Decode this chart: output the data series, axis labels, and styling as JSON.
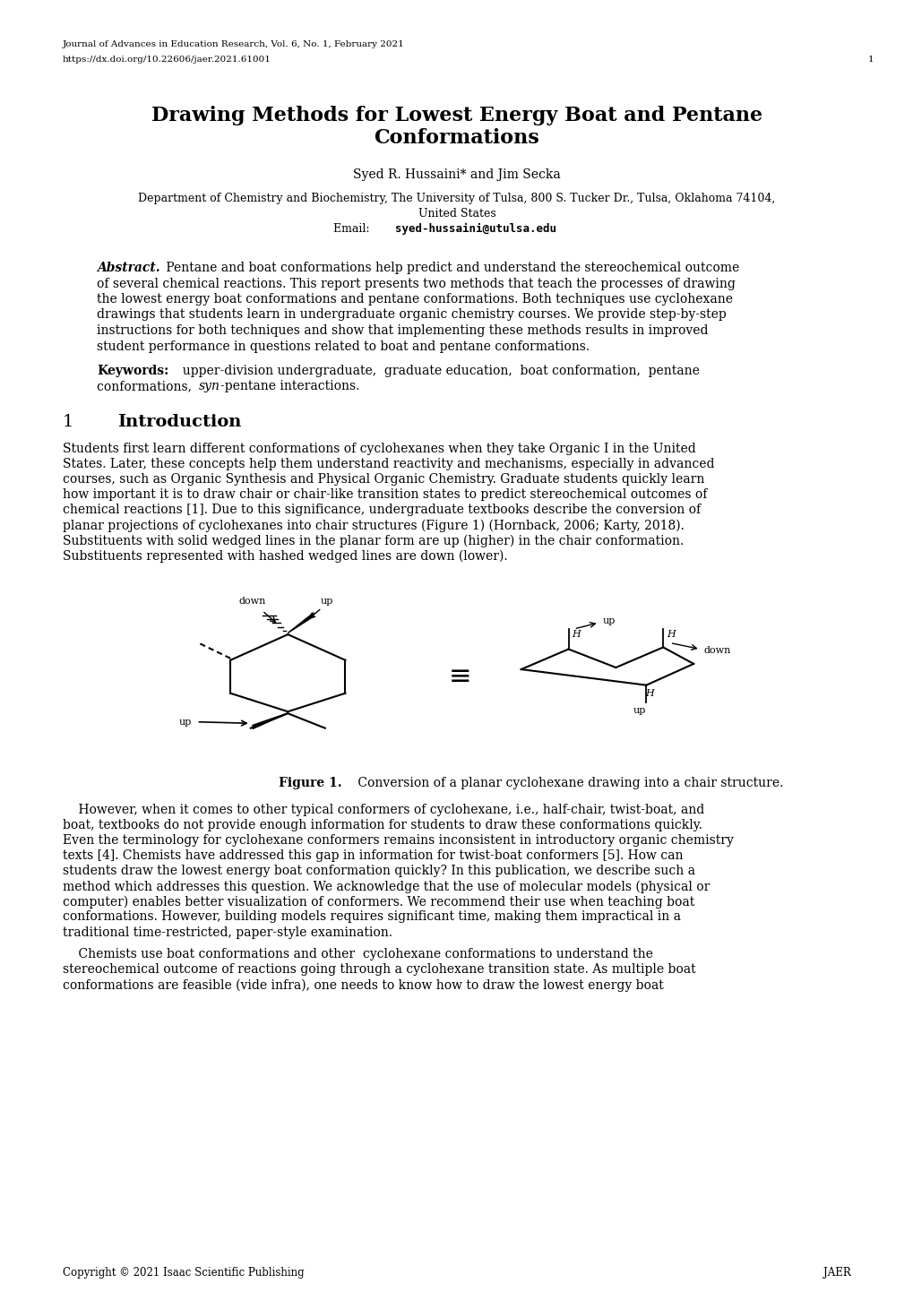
{
  "header_line1": "Journal of Advances in Education Research, Vol. 6, No. 1, February 2021",
  "header_line2": "https://dx.doi.org/10.22606/jaer.2021.61001",
  "header_page": "1",
  "title_line1": "Drawing Methods for Lowest Energy Boat and Pentane",
  "title_line2": "Conformations",
  "authors": "Syed R. Hussaini* and Jim Secka",
  "affil1": "Department of Chemistry and Biochemistry, The University of Tulsa, 800 S. Tucker Dr., Tulsa, Oklahoma 74104,",
  "affil2": "United States",
  "email_label": "Email:  ",
  "email_addr": "syed-hussaini@utulsa.edu",
  "abstract_label": "Abstract.",
  "abstract_lines": [
    " Pentane and boat conformations help predict and understand the stereochemical outcome",
    "of several chemical reactions. This report presents two methods that teach the processes of drawing",
    "the lowest energy boat conformations and pentane conformations. Both techniques use cyclohexane",
    "drawings that students learn in undergraduate organic chemistry courses. We provide step-by-step",
    "instructions for both techniques and show that implementing these methods results in improved",
    "student performance in questions related to boat and pentane conformations."
  ],
  "keywords_label": "Keywords:",
  "keywords_line1": "  upper-division undergraduate,  graduate education,  boat conformation,  pentane",
  "keywords_line2a": "conformations, ",
  "keywords_line2b": "syn",
  "keywords_line2c": "-pentane interactions.",
  "section1_num": "1",
  "section1_title": "Introduction",
  "intro1_lines": [
    "Students first learn different conformations of cyclohexanes when they take Organic I in the United",
    "States. Later, these concepts help them understand reactivity and mechanisms, especially in advanced",
    "courses, such as Organic Synthesis and Physical Organic Chemistry. Graduate students quickly learn",
    "how important it is to draw chair or chair-like transition states to predict stereochemical outcomes of",
    "chemical reactions [1]. Due to this significance, undergraduate textbooks describe the conversion of",
    "planar projections of cyclohexanes into chair structures (Figure 1) (Hornback, 2006; Karty, 2018).",
    "Substituents with solid wedged lines in the planar form are up (higher) in the chair conformation.",
    "Substituents represented with hashed wedged lines are down (lower)."
  ],
  "figure_caption_bold": "Figure 1.",
  "figure_caption_text": " Conversion of a planar cyclohexane drawing into a chair structure.",
  "para2_lines": [
    "    However, when it comes to other typical conformers of cyclohexane, i.e., half-chair, twist-boat, and",
    "boat, textbooks do not provide enough information for students to draw these conformations quickly.",
    "Even the terminology for cyclohexane conformers remains inconsistent in introductory organic chemistry",
    "texts [4]. Chemists have addressed this gap in information for twist-boat conformers [5]. How can",
    "students draw the lowest energy boat conformation quickly? In this publication, we describe such a",
    "method which addresses this question. We acknowledge that the use of molecular models (physical or",
    "computer) enables better visualization of conformers. We recommend their use when teaching boat",
    "conformations. However, building models requires significant time, making them impractical in a",
    "traditional time-restricted, paper-style examination."
  ],
  "para3_lines": [
    "    Chemists use boat conformations and other  cyclohexane conformations to understand the",
    "stereochemical outcome of reactions going through a cyclohexane transition state. As multiple boat",
    "conformations are feasible (vide infra), one needs to know how to draw the lowest energy boat"
  ],
  "footer_left": "Copyright © 2021 Isaac Scientific Publishing",
  "footer_right": "JAER",
  "bg_color": "#ffffff",
  "text_color": "#000000"
}
